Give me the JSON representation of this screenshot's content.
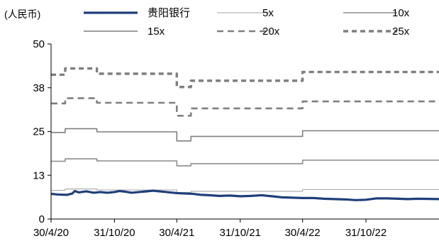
{
  "chart_data": {
    "type": "line",
    "unit_label": "(人民币)",
    "xlabel": "",
    "ylabel": "",
    "title": "",
    "x_range": [
      "2020-04-30",
      "2023-05-31"
    ],
    "ylim": [
      0,
      50
    ],
    "y_ticks": [
      {
        "value": 0,
        "label": "0"
      },
      {
        "value": 12.5,
        "label": "13"
      },
      {
        "value": 25,
        "label": "25"
      },
      {
        "value": 37.5,
        "label": "38"
      },
      {
        "value": 50,
        "label": "50"
      }
    ],
    "x_ticks": [
      {
        "date": "2020-04-30",
        "label": "30/4/20"
      },
      {
        "date": "2020-10-31",
        "label": "31/10/20"
      },
      {
        "date": "2021-04-30",
        "label": "30/4/21"
      },
      {
        "date": "2021-10-31",
        "label": "31/10/21"
      },
      {
        "date": "2022-04-30",
        "label": "30/4/22"
      },
      {
        "date": "2022-10-31",
        "label": "31/10/22"
      }
    ],
    "grid": false,
    "legend_position": "top",
    "series": [
      {
        "name": "贵阳银行",
        "color": "#1f3f7a",
        "style": "solid-bold",
        "points": [
          [
            "2020-04-30",
            7.2
          ],
          [
            "2020-05-20",
            7.0
          ],
          [
            "2020-06-15",
            6.9
          ],
          [
            "2020-07-01",
            7.3
          ],
          [
            "2020-07-08",
            8.0
          ],
          [
            "2020-07-20",
            7.6
          ],
          [
            "2020-08-10",
            7.9
          ],
          [
            "2020-09-01",
            7.5
          ],
          [
            "2020-09-20",
            7.7
          ],
          [
            "2020-10-10",
            7.5
          ],
          [
            "2020-10-31",
            7.7
          ],
          [
            "2020-11-15",
            8.0
          ],
          [
            "2020-12-01",
            7.8
          ],
          [
            "2020-12-20",
            7.5
          ],
          [
            "2021-01-10",
            7.7
          ],
          [
            "2021-02-01",
            7.9
          ],
          [
            "2021-02-20",
            8.1
          ],
          [
            "2021-03-10",
            7.9
          ],
          [
            "2021-03-31",
            7.7
          ],
          [
            "2021-04-30",
            7.4
          ],
          [
            "2021-05-20",
            7.3
          ],
          [
            "2021-06-15",
            7.2
          ],
          [
            "2021-07-10",
            6.9
          ],
          [
            "2021-08-01",
            6.8
          ],
          [
            "2021-09-01",
            6.6
          ],
          [
            "2021-10-01",
            6.7
          ],
          [
            "2021-10-31",
            6.5
          ],
          [
            "2021-12-01",
            6.6
          ],
          [
            "2022-01-01",
            6.8
          ],
          [
            "2022-02-01",
            6.5
          ],
          [
            "2022-03-01",
            6.2
          ],
          [
            "2022-04-30",
            6.0
          ],
          [
            "2022-06-01",
            6.0
          ],
          [
            "2022-07-01",
            5.8
          ],
          [
            "2022-08-01",
            5.7
          ],
          [
            "2022-09-01",
            5.6
          ],
          [
            "2022-10-01",
            5.4
          ],
          [
            "2022-10-31",
            5.5
          ],
          [
            "2022-12-01",
            5.9
          ],
          [
            "2023-01-01",
            5.9
          ],
          [
            "2023-02-01",
            5.8
          ],
          [
            "2023-03-01",
            5.7
          ],
          [
            "2023-04-01",
            5.8
          ],
          [
            "2023-05-31",
            5.7
          ]
        ]
      },
      {
        "name": "5x",
        "color": "#a6a6a6",
        "style": "solid-thin",
        "points": [
          [
            "2020-04-30",
            8.2
          ],
          [
            "2020-06-10",
            8.2
          ],
          [
            "2020-06-10",
            8.6
          ],
          [
            "2020-09-10",
            8.6
          ],
          [
            "2020-09-10",
            8.3
          ],
          [
            "2021-04-30",
            8.3
          ],
          [
            "2021-04-30",
            7.6
          ],
          [
            "2021-06-10",
            7.6
          ],
          [
            "2021-06-10",
            7.9
          ],
          [
            "2022-04-30",
            7.9
          ],
          [
            "2022-04-30",
            8.4
          ],
          [
            "2023-05-31",
            8.4
          ]
        ]
      },
      {
        "name": "10x",
        "color": "#8c8c8c",
        "style": "solid",
        "points": [
          [
            "2020-04-30",
            16.5
          ],
          [
            "2020-06-10",
            16.5
          ],
          [
            "2020-06-10",
            17.2
          ],
          [
            "2020-09-10",
            17.2
          ],
          [
            "2020-09-10",
            16.6
          ],
          [
            "2021-04-30",
            16.6
          ],
          [
            "2021-04-30",
            15.2
          ],
          [
            "2021-06-10",
            15.2
          ],
          [
            "2021-06-10",
            15.8
          ],
          [
            "2022-04-30",
            15.8
          ],
          [
            "2022-04-30",
            16.8
          ],
          [
            "2023-05-31",
            16.8
          ]
        ]
      },
      {
        "name": "15x",
        "color": "#7f7f7f",
        "style": "solid",
        "points": [
          [
            "2020-04-30",
            24.7
          ],
          [
            "2020-06-10",
            24.7
          ],
          [
            "2020-06-10",
            25.8
          ],
          [
            "2020-09-10",
            25.8
          ],
          [
            "2020-09-10",
            24.9
          ],
          [
            "2021-04-30",
            24.9
          ],
          [
            "2021-04-30",
            22.3
          ],
          [
            "2021-06-10",
            22.3
          ],
          [
            "2021-06-10",
            23.6
          ],
          [
            "2022-04-30",
            23.6
          ],
          [
            "2022-04-30",
            25.2
          ],
          [
            "2023-05-31",
            25.2
          ]
        ]
      },
      {
        "name": "20x",
        "color": "#7f7f7f",
        "style": "dashed",
        "points": [
          [
            "2020-04-30",
            33.0
          ],
          [
            "2020-06-10",
            33.0
          ],
          [
            "2020-06-10",
            34.5
          ],
          [
            "2020-09-10",
            34.5
          ],
          [
            "2020-09-10",
            33.2
          ],
          [
            "2021-04-30",
            33.2
          ],
          [
            "2021-04-30",
            29.5
          ],
          [
            "2021-06-10",
            29.5
          ],
          [
            "2021-06-10",
            31.6
          ],
          [
            "2022-04-30",
            31.6
          ],
          [
            "2022-04-30",
            33.6
          ],
          [
            "2023-05-31",
            33.6
          ]
        ]
      },
      {
        "name": "25x",
        "color": "#7f7f7f",
        "style": "dashed-bold",
        "points": [
          [
            "2020-04-30",
            41.2
          ],
          [
            "2020-06-10",
            41.2
          ],
          [
            "2020-06-10",
            43.0
          ],
          [
            "2020-09-10",
            43.0
          ],
          [
            "2020-09-10",
            41.5
          ],
          [
            "2021-04-30",
            41.5
          ],
          [
            "2021-04-30",
            37.7
          ],
          [
            "2021-06-10",
            37.7
          ],
          [
            "2021-06-10",
            39.5
          ],
          [
            "2022-04-30",
            39.5
          ],
          [
            "2022-04-30",
            42.0
          ],
          [
            "2023-05-31",
            42.0
          ]
        ]
      }
    ]
  }
}
